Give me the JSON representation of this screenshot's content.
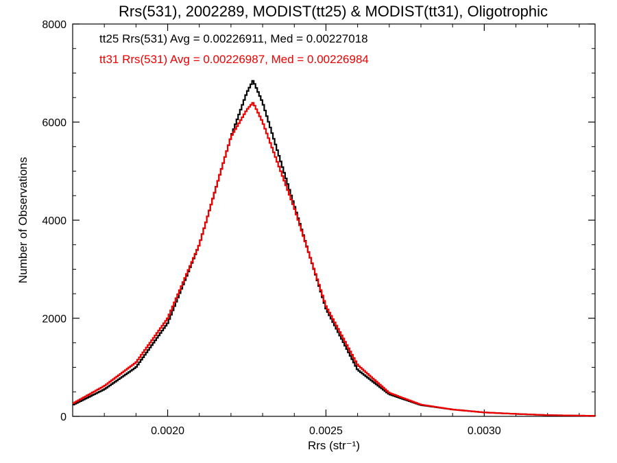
{
  "chart_data": {
    "type": "line",
    "step": true,
    "title": "Rrs(531), 2002289, MODIST(tt25) & MODIST(tt31), Oligotrophic",
    "xlabel": "Rrs (str⁻¹)",
    "ylabel": "Number of Observations",
    "xlim": [
      0.0017,
      0.00335
    ],
    "ylim": [
      0,
      8000
    ],
    "x_ticks": [
      {
        "value": 0.002,
        "label": "0.0020"
      },
      {
        "value": 0.0025,
        "label": "0.0025"
      },
      {
        "value": 0.003,
        "label": "0.0030"
      }
    ],
    "y_ticks": [
      {
        "value": 0,
        "label": "0"
      },
      {
        "value": 2000,
        "label": "2000"
      },
      {
        "value": 4000,
        "label": "4000"
      },
      {
        "value": 6000,
        "label": "6000"
      },
      {
        "value": 8000,
        "label": "8000"
      }
    ],
    "grid": false,
    "legend_position": "top-left",
    "annotations": [
      {
        "text": "tt25 Rrs(531) Avg = 0.00226911, Med = 0.00227018",
        "color": "#000000"
      },
      {
        "text": "tt31 Rrs(531) Avg = 0.00226987, Med = 0.00226984",
        "color": "#ee0000"
      }
    ],
    "series": [
      {
        "color": "#000000",
        "x": [
          0.0017,
          0.0018,
          0.0019,
          0.002,
          0.0021,
          0.0022,
          0.00225,
          0.00227,
          0.0023,
          0.0024,
          0.0025,
          0.0026,
          0.0027,
          0.0028,
          0.0029,
          0.003,
          0.0031,
          0.0032,
          0.00335
        ],
        "y": [
          230,
          550,
          1000,
          1900,
          3500,
          5700,
          6600,
          6850,
          6400,
          4300,
          2200,
          950,
          450,
          230,
          140,
          80,
          50,
          25,
          10
        ]
      },
      {
        "color": "#ee0000",
        "x": [
          0.0017,
          0.0018,
          0.0019,
          0.002,
          0.0021,
          0.0022,
          0.00225,
          0.00227,
          0.0023,
          0.0024,
          0.0025,
          0.0026,
          0.0027,
          0.0028,
          0.0029,
          0.003,
          0.0031,
          0.0032,
          0.00335
        ],
        "y": [
          260,
          620,
          1100,
          2000,
          3500,
          5700,
          6250,
          6400,
          6000,
          4250,
          2250,
          1050,
          480,
          240,
          140,
          80,
          50,
          25,
          10
        ]
      }
    ]
  }
}
